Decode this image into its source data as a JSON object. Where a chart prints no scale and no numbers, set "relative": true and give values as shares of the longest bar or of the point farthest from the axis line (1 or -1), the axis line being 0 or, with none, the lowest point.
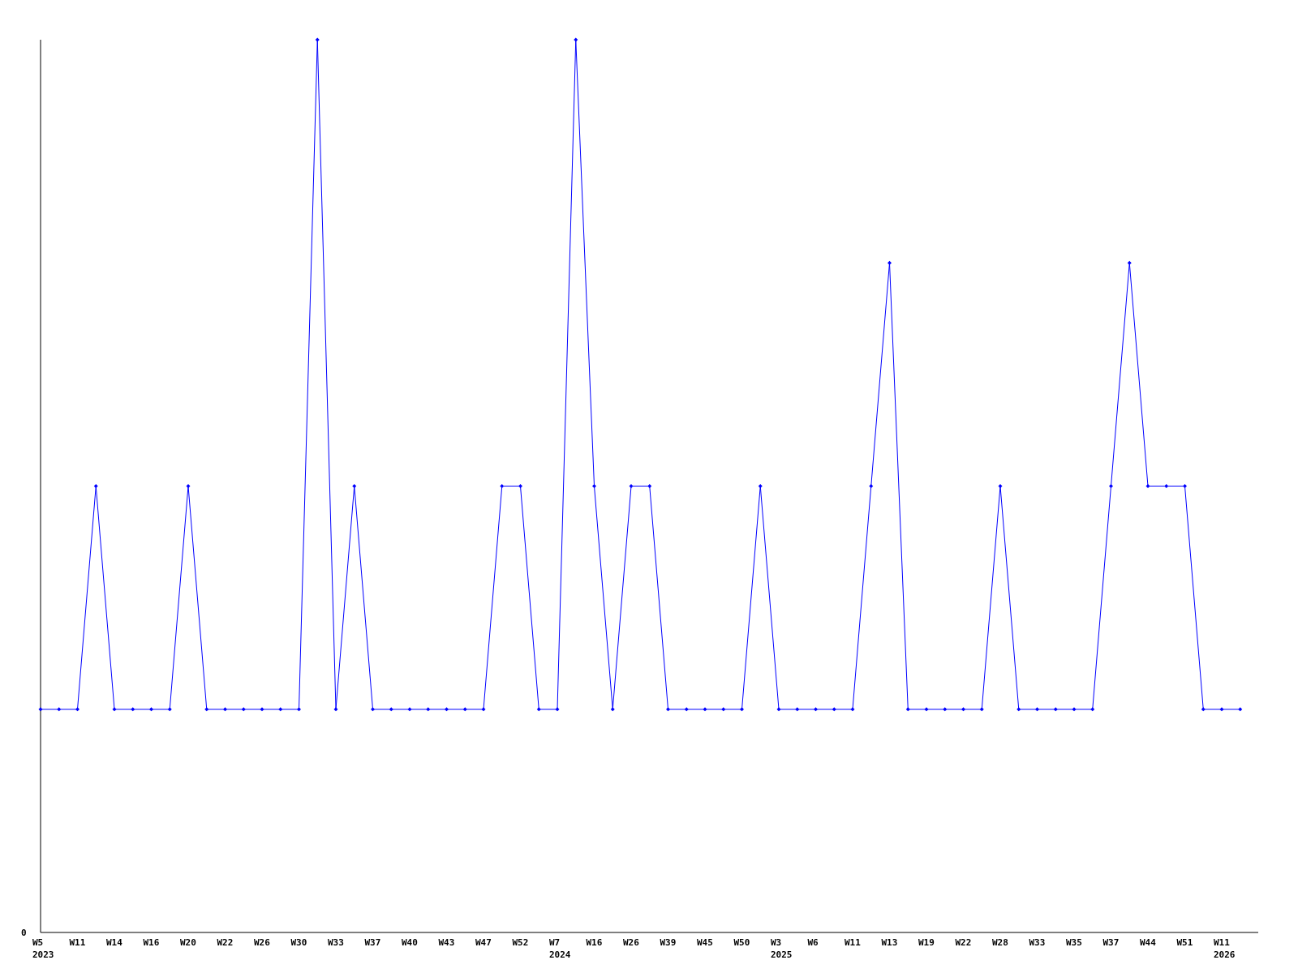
{
  "chart_data": {
    "type": "line",
    "relative": true,
    "marker": "diamond",
    "categories": [
      "W5\n2023",
      null,
      "W11",
      null,
      "W14",
      null,
      "W16",
      null,
      "W20",
      null,
      "W22",
      null,
      "W26",
      null,
      "W30",
      null,
      "W33",
      null,
      "W37",
      null,
      "W40",
      null,
      "W43",
      null,
      "W47",
      null,
      "W52",
      null,
      "W7\n2024",
      null,
      "W16",
      null,
      "W26",
      null,
      "W39",
      null,
      "W45",
      null,
      "W50",
      null,
      "W3\n2025",
      null,
      "W6",
      null,
      "W11",
      null,
      "W13",
      null,
      "W19",
      null,
      "W22",
      null,
      "W28",
      null,
      "W33",
      null,
      "W35",
      null,
      "W37",
      null,
      "W44",
      null,
      "W51",
      null,
      "W11\n2026",
      null
    ],
    "series": [
      {
        "color": "#0000ff",
        "values": [
          0.25,
          0.25,
          0.25,
          0.5,
          0.25,
          0.25,
          0.25,
          0.25,
          0.5,
          0.25,
          0.25,
          0.25,
          0.25,
          0.25,
          0.25,
          1,
          0.25,
          0.5,
          0.25,
          0.25,
          0.25,
          0.25,
          0.25,
          0.25,
          0.25,
          0.5,
          0.5,
          0.25,
          0.25,
          1,
          0.5,
          0.25,
          0.5,
          0.5,
          0.25,
          0.25,
          0.25,
          0.25,
          0.25,
          0.5,
          0.25,
          0.25,
          0.25,
          0.25,
          0.25,
          0.5,
          0.75,
          0.25,
          0.25,
          0.25,
          0.25,
          0.25,
          0.5,
          0.25,
          0.25,
          0.25,
          0.25,
          0.25,
          0.5,
          0.75,
          0.5,
          0.5,
          0.5,
          0.25,
          0.25,
          0.25
        ]
      }
    ],
    "annotations": [
      "0"
    ]
  }
}
